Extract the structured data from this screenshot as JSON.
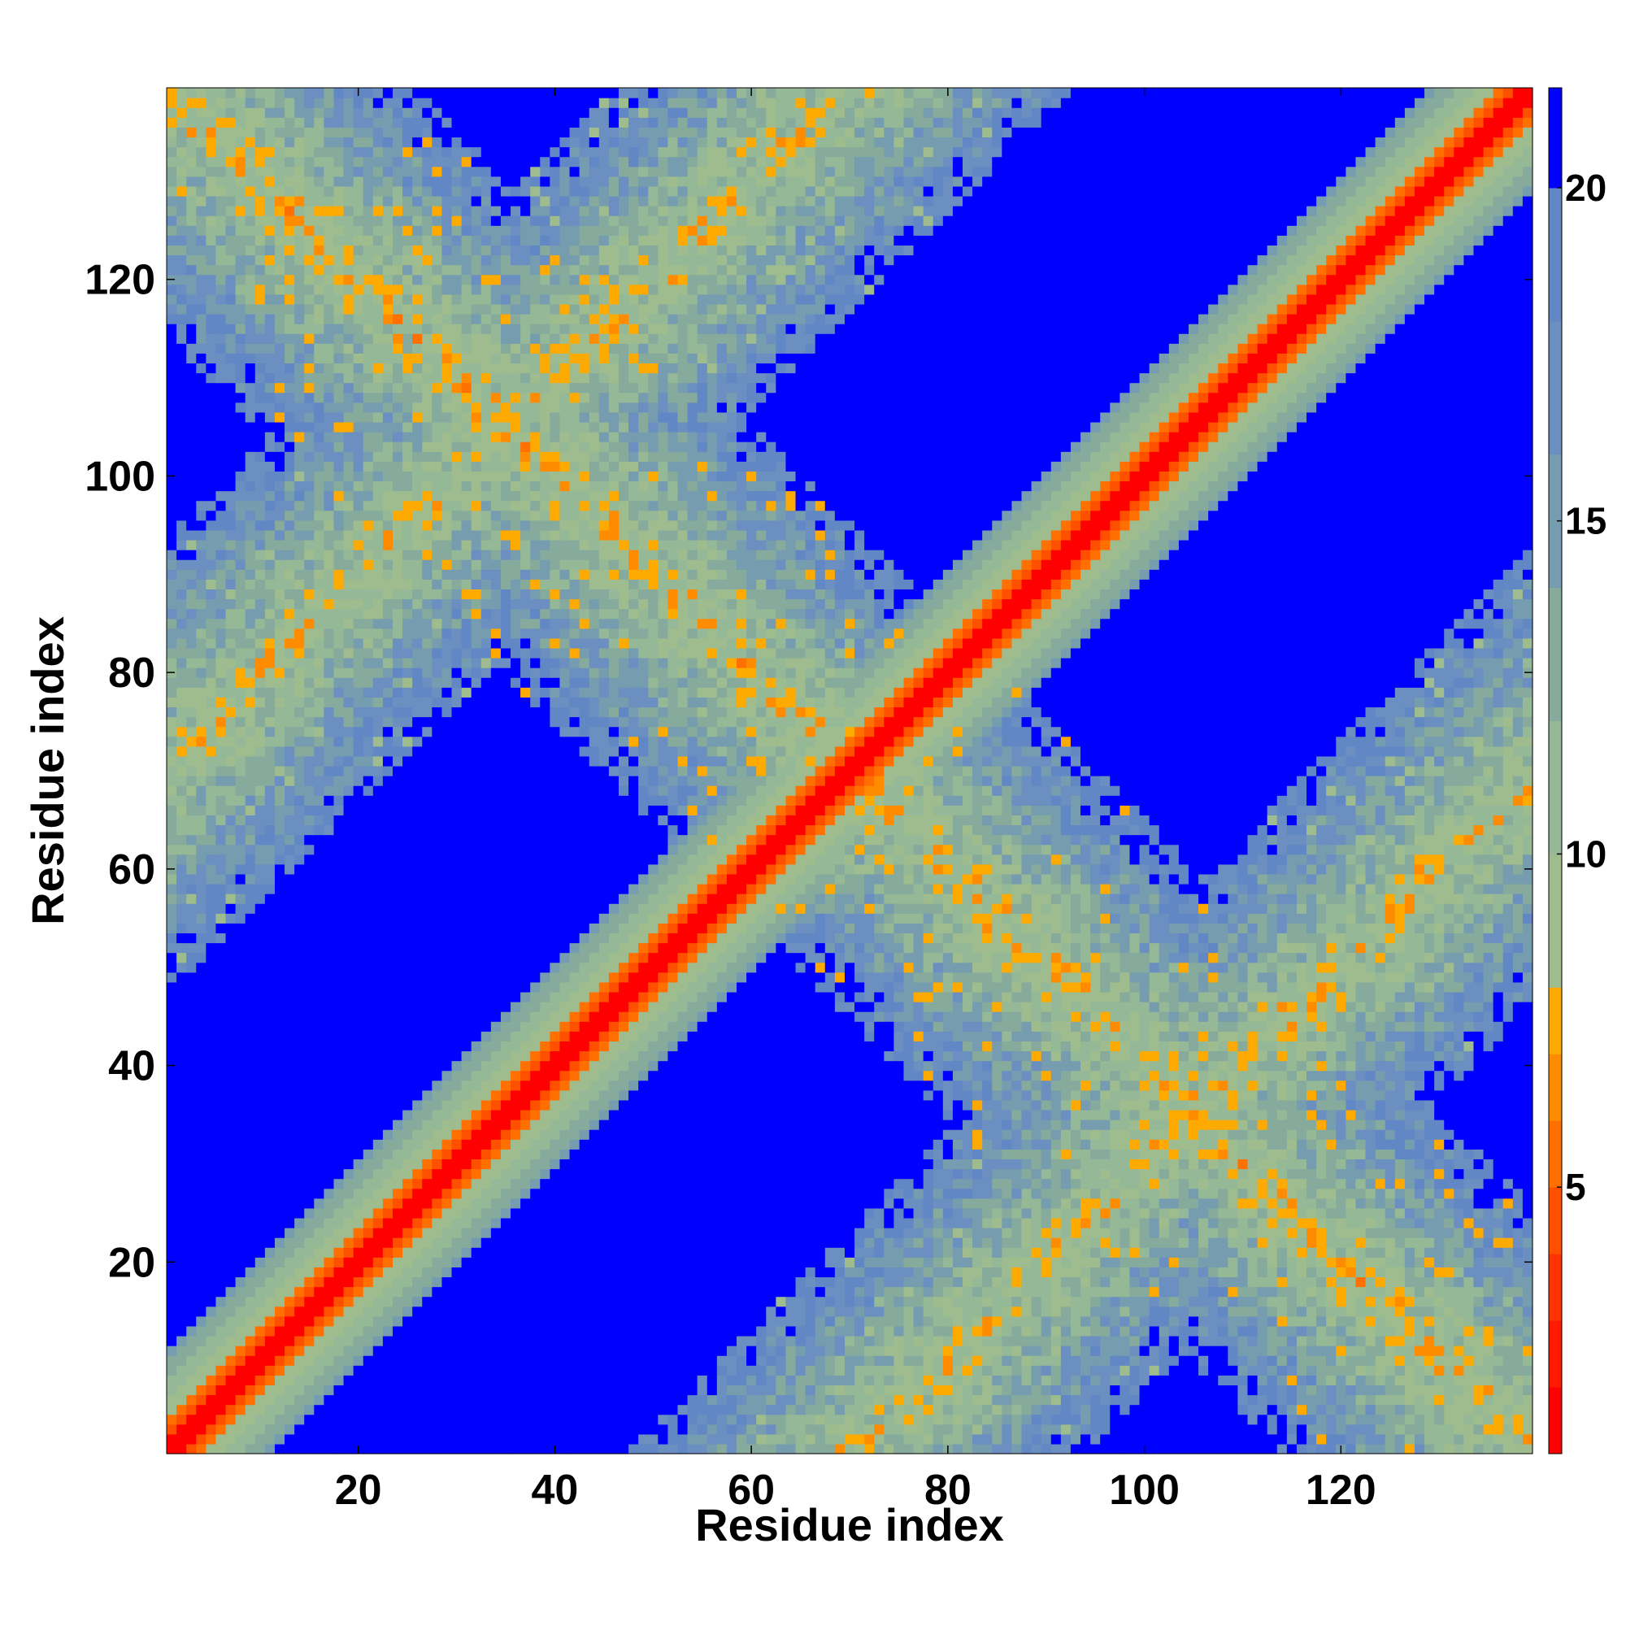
{
  "chart_data": {
    "type": "heatmap",
    "title": "",
    "xlabel": "Residue index",
    "ylabel": "Residue index",
    "n_residues": 139,
    "xlim": [
      1,
      139
    ],
    "ylim": [
      1,
      139
    ],
    "x_ticks": [
      20,
      40,
      60,
      80,
      100,
      120
    ],
    "y_ticks": [
      20,
      40,
      60,
      80,
      100,
      120
    ],
    "colorbar": {
      "ticks": [
        5,
        10,
        15,
        20
      ],
      "range": [
        1,
        21.5
      ],
      "levels": [
        {
          "max": 2,
          "color": "#ff0000"
        },
        {
          "max": 3,
          "color": "#ff1a00"
        },
        {
          "max": 4,
          "color": "#ff3300"
        },
        {
          "max": 5,
          "color": "#ff5000"
        },
        {
          "max": 6,
          "color": "#ff7000"
        },
        {
          "max": 7,
          "color": "#ff8c00"
        },
        {
          "max": 8,
          "color": "#ffaa00"
        },
        {
          "max": 10,
          "color": "#9fbc8f"
        },
        {
          "max": 12,
          "color": "#95b896"
        },
        {
          "max": 14,
          "color": "#86aa9c"
        },
        {
          "max": 16,
          "color": "#769cb0"
        },
        {
          "max": 18,
          "color": "#6a8fc0"
        },
        {
          "max": 20,
          "color": "#6187c4"
        },
        {
          "max": 21.5,
          "color": "#0000ff"
        }
      ]
    },
    "above_range_color": "#0000ff",
    "pattern": "residue-residue distance map: low distances along the main diagonal, plus two anti-diagonal contact bands (i + j ≈ 140 and j − i ≈ ±70)"
  }
}
